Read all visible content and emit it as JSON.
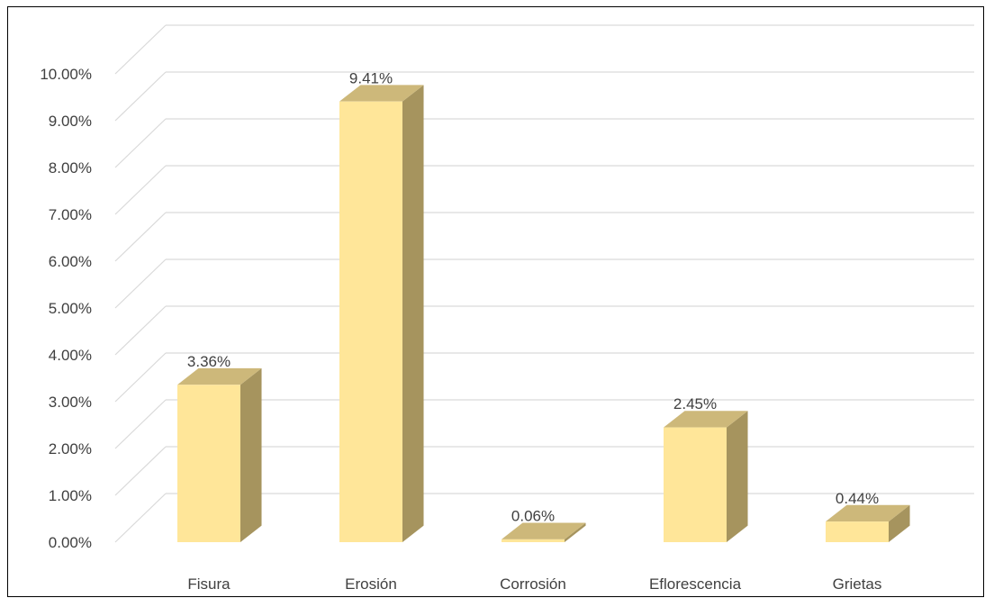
{
  "chart_data": {
    "type": "bar",
    "style": "3d-column",
    "categories": [
      "Fisura",
      "Erosión",
      "Corrosión",
      "Eflorescencia",
      "Grietas"
    ],
    "values": [
      3.36,
      9.41,
      0.06,
      2.45,
      0.44
    ],
    "value_labels": [
      "3.36%",
      "9.41%",
      "0.06%",
      "2.45%",
      "0.44%"
    ],
    "y_ticks": [
      "0.00%",
      "1.00%",
      "2.00%",
      "3.00%",
      "4.00%",
      "5.00%",
      "6.00%",
      "7.00%",
      "8.00%",
      "9.00%",
      "10.00%"
    ],
    "ylim": [
      0,
      10
    ],
    "grid": true,
    "legend": "none",
    "title": "",
    "xlabel": "",
    "ylabel": "",
    "colors": {
      "bar_front": "#FFE699",
      "bar_side": "#A6945E",
      "bar_top": "#CDB87A",
      "grid": "#D9D9D9",
      "text": "#404040"
    }
  }
}
